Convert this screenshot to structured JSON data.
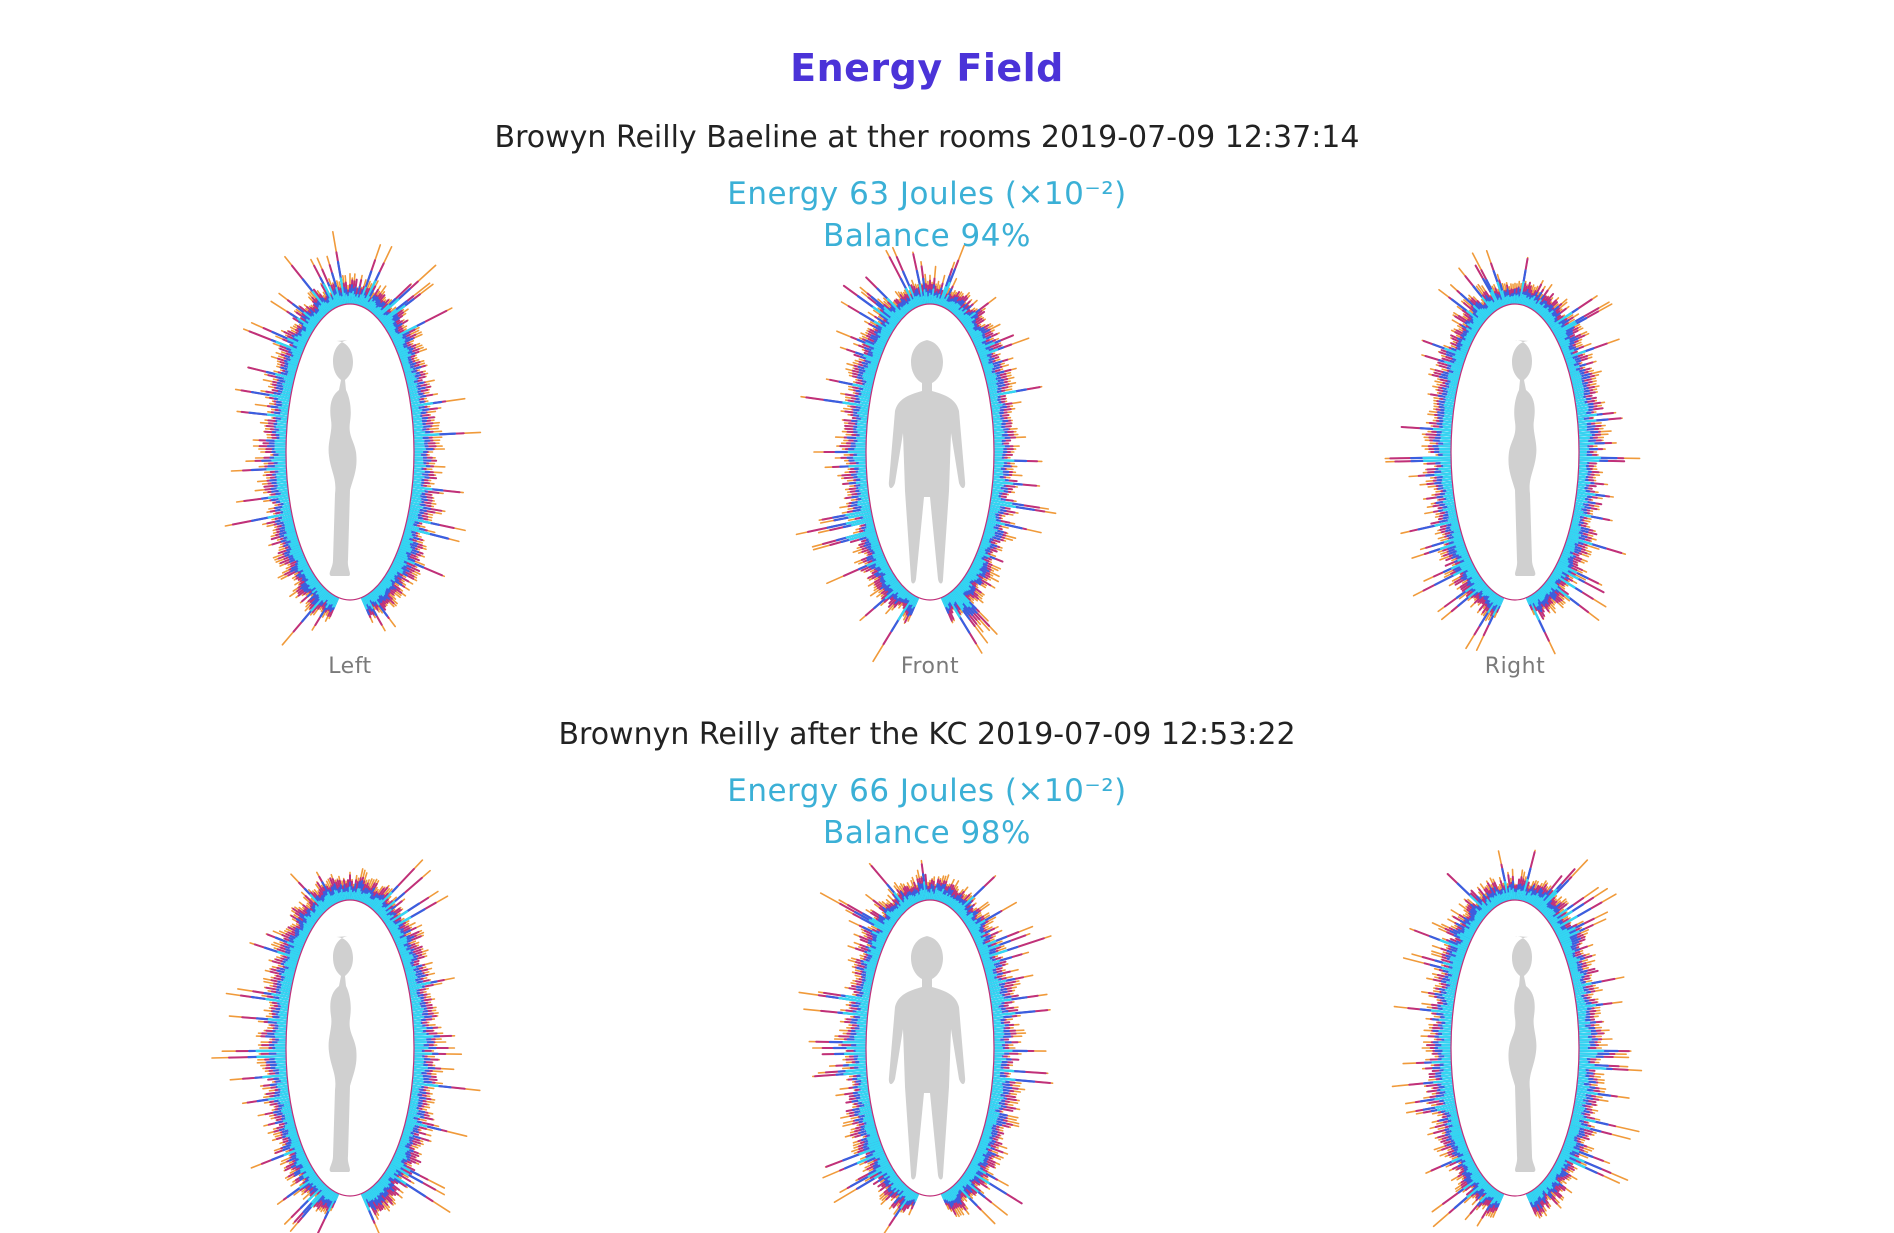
{
  "header": {
    "title": "Energy Field"
  },
  "sessions": [
    {
      "caption": "Browyn Reilly Baeline at ther rooms 2019-07-09 12:37:14",
      "energy": "Energy 63 Joules (×10⁻²)",
      "balance": "Balance 94%",
      "energy_value": 63,
      "balance_percent": 94,
      "views": [
        {
          "view": "left",
          "label": "Left"
        },
        {
          "view": "front",
          "label": "Front"
        },
        {
          "view": "right",
          "label": "Right"
        }
      ]
    },
    {
      "caption": "Brownyn Reilly after the KC 2019-07-09 12:53:22",
      "energy": "Energy 66 Joules (×10⁻²)",
      "balance": "Balance 98%",
      "energy_value": 66,
      "balance_percent": 98,
      "views": [
        {
          "view": "left"
        },
        {
          "view": "front"
        },
        {
          "view": "right"
        }
      ]
    }
  ],
  "colors": {
    "title": "#4b33d8",
    "metric_text": "#3bb0d6",
    "aura_inner": "#33d6f2",
    "aura_mid": "#3a5fe0",
    "aura_outer": "#c0307a",
    "aura_tip": "#f09a3a",
    "silhouette": "#d0d0d0"
  }
}
